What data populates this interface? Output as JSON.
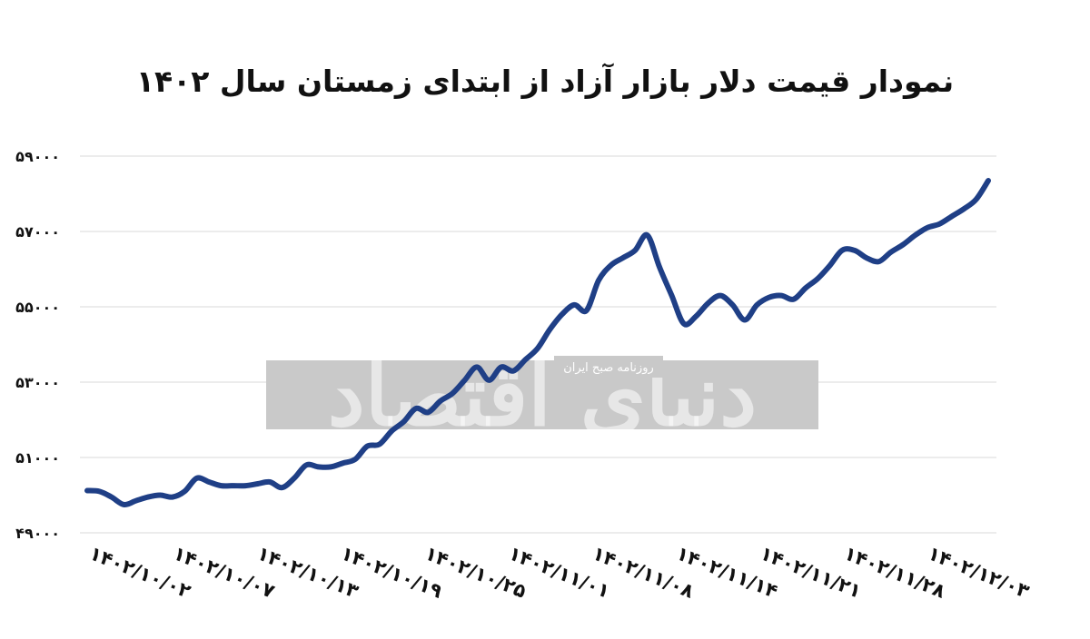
{
  "chart_data": {
    "type": "line",
    "title": "نمودار قیمت دلار بازار آزاد از ابتدای زمستان سال ۱۴۰۲",
    "xlabel": "",
    "ylabel": "",
    "ylim": [
      49000,
      59000
    ],
    "yticks": [
      "۴۹۰۰۰",
      "۵۱۰۰۰",
      "۵۳۰۰۰",
      "۵۵۰۰۰",
      "۵۷۰۰۰",
      "۵۹۰۰۰"
    ],
    "ytick_values": [
      49000,
      51000,
      53000,
      55000,
      57000,
      59000
    ],
    "x_tick_labels": [
      "۱۴۰۲/۱۰/۰۲",
      "۱۴۰۲/۱۰/۰۷",
      "۱۴۰۲/۱۰/۱۳",
      "۱۴۰۲/۱۰/۱۹",
      "۱۴۰۲/۱۰/۲۵",
      "۱۴۰۲/۱۱/۰۱",
      "۱۴۰۲/۱۱/۰۸",
      "۱۴۰۲/۱۱/۱۴",
      "۱۴۰۲/۱۱/۲۱",
      "۱۴۰۲/۱۱/۲۸",
      "۱۴۰۲/۱۲/۰۳"
    ],
    "grid": true,
    "line_color": "#1f3f86",
    "series": [
      {
        "values": [
          50120,
          50100,
          49950,
          49750,
          49850,
          49950,
          50000,
          49950,
          50100,
          50450,
          50350,
          50250,
          50250,
          50250,
          50300,
          50350,
          50200,
          50450,
          50800,
          50750,
          50750,
          50850,
          50950,
          51300,
          51350,
          51700,
          51950,
          52300,
          52200,
          52500,
          52700,
          53050,
          53400,
          53050,
          53400,
          53300,
          53600,
          53900,
          54400,
          54800,
          55050,
          54900,
          55700,
          56100,
          56300,
          56500,
          56900,
          56050,
          55300,
          54550,
          54750,
          55100,
          55300,
          55050,
          54650,
          55050,
          55250,
          55300,
          55200,
          55500,
          55750,
          56100,
          56500,
          56500,
          56300,
          56200,
          56450,
          56650,
          56900,
          57100,
          57200,
          57400,
          57600,
          57850,
          58350
        ]
      }
    ]
  },
  "watermark": {
    "main": "دنیای اقتصاد",
    "sub": "روزنامه صبح ایران"
  }
}
